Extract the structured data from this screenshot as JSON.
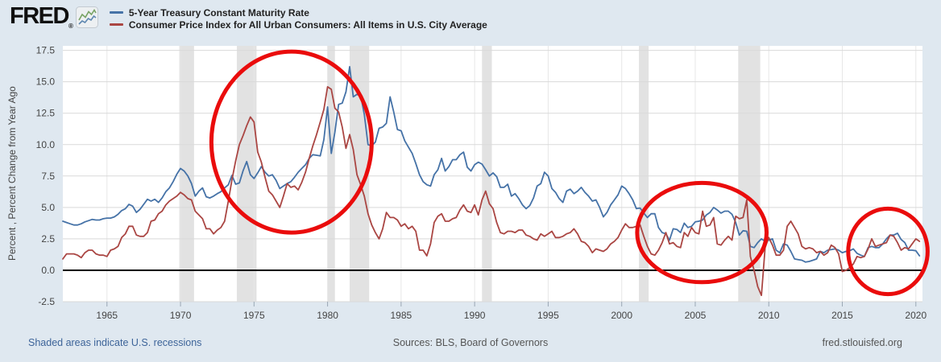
{
  "header": {
    "logo_text": "FRED",
    "logo_registered": "®",
    "logo_icon": "fred-sparkline-icon"
  },
  "footer": {
    "note": "Shaded areas indicate U.S. recessions",
    "sources": "Sources: BLS, Board of Governors",
    "site": "fred.stlouisfed.org"
  },
  "colors": {
    "background": "#dfe8f0",
    "plot_background": "#ffffff",
    "grid_horizontal": "#d9d9d9",
    "grid_vertical": "#e7e7e7",
    "tick_mark": "#9aa7b4",
    "zero_line": "#000000",
    "annotation_red": "#ea0c0c",
    "link_blue": "#3d6499",
    "footer_gray": "#555555"
  },
  "chart_data": {
    "type": "line",
    "title": "",
    "xlabel": "",
    "ylabel": "Percent , Percent Change from Year Ago",
    "x_range": [
      1962,
      2020.45
    ],
    "y_range": [
      -2.5,
      17.86
    ],
    "x_ticks": [
      1965,
      1970,
      1975,
      1980,
      1985,
      1990,
      1995,
      2000,
      2005,
      2010,
      2015,
      2020
    ],
    "x_tick_labels": [
      "1965",
      "1970",
      "1975",
      "1980",
      "1985",
      "1990",
      "1995",
      "2000",
      "2005",
      "2010",
      "2015",
      "2020"
    ],
    "y_ticks": [
      -2.5,
      0.0,
      2.5,
      5.0,
      7.5,
      10.0,
      12.5,
      15.0,
      17.5
    ],
    "y_tick_labels": [
      "-2.5",
      "0.0",
      "2.5",
      "5.0",
      "7.5",
      "10.0",
      "12.5",
      "15.0",
      "17.5"
    ],
    "grid": true,
    "zero_line": true,
    "legend_position": "top-left",
    "recession_color": "#e2e2e2",
    "recessions": [
      [
        1969.92,
        1970.92
      ],
      [
        1973.83,
        1975.17
      ],
      [
        1980.0,
        1980.5
      ],
      [
        1981.5,
        1982.83
      ],
      [
        1990.5,
        1991.17
      ],
      [
        2001.17,
        2001.83
      ],
      [
        2007.92,
        2009.42
      ]
    ],
    "series": [
      {
        "name": "5-Year Treasury Constant Maturity Rate",
        "color": "#4572a7",
        "x_start": 1962.0,
        "x_step": 0.25,
        "values": [
          3.9,
          3.8,
          3.7,
          3.6,
          3.6,
          3.7,
          3.85,
          3.95,
          4.05,
          4.0,
          4.0,
          4.1,
          4.15,
          4.15,
          4.25,
          4.45,
          4.75,
          4.9,
          5.25,
          5.1,
          4.6,
          4.85,
          5.25,
          5.65,
          5.5,
          5.65,
          5.4,
          5.75,
          6.25,
          6.55,
          7.05,
          7.65,
          8.1,
          7.9,
          7.5,
          6.9,
          5.9,
          6.3,
          6.55,
          5.85,
          5.75,
          5.9,
          6.1,
          6.25,
          6.55,
          6.8,
          7.55,
          6.85,
          6.95,
          7.9,
          8.65,
          7.6,
          7.3,
          7.75,
          8.25,
          7.8,
          7.5,
          7.6,
          7.15,
          6.5,
          6.7,
          6.9,
          7.05,
          7.4,
          7.8,
          8.1,
          8.4,
          8.9,
          9.2,
          9.15,
          9.1,
          10.4,
          13.0,
          9.3,
          11.0,
          13.2,
          13.3,
          14.2,
          16.2,
          13.8,
          14.0,
          13.9,
          12.4,
          10.0,
          9.9,
          10.2,
          11.3,
          11.4,
          11.7,
          13.8,
          12.6,
          11.2,
          11.1,
          10.3,
          9.8,
          9.3,
          8.5,
          7.6,
          7.05,
          6.8,
          6.7,
          7.6,
          8.0,
          8.9,
          7.9,
          8.25,
          8.8,
          8.8,
          9.2,
          9.4,
          8.2,
          7.9,
          8.4,
          8.6,
          8.45,
          8.0,
          7.5,
          7.75,
          7.45,
          6.6,
          6.6,
          6.85,
          5.9,
          6.1,
          5.7,
          5.2,
          4.9,
          5.15,
          5.75,
          6.7,
          6.9,
          7.8,
          7.5,
          6.5,
          6.2,
          5.7,
          5.4,
          6.3,
          6.45,
          6.1,
          6.3,
          6.6,
          6.2,
          5.9,
          5.5,
          5.6,
          5.0,
          4.25,
          4.6,
          5.2,
          5.6,
          6.0,
          6.7,
          6.5,
          6.1,
          5.6,
          4.9,
          4.95,
          4.55,
          4.2,
          4.5,
          4.5,
          3.4,
          3.0,
          2.9,
          2.4,
          3.3,
          3.25,
          3.0,
          3.75,
          3.4,
          3.5,
          3.85,
          3.9,
          4.0,
          4.4,
          4.6,
          5.0,
          4.8,
          4.55,
          4.7,
          4.7,
          4.45,
          3.8,
          2.8,
          3.15,
          3.1,
          1.9,
          1.8,
          2.2,
          2.5,
          2.3,
          2.4,
          2.5,
          1.6,
          1.4,
          2.1,
          2.0,
          1.5,
          0.9,
          0.85,
          0.8,
          0.65,
          0.7,
          0.8,
          0.9,
          1.5,
          1.4,
          1.6,
          1.65,
          1.7,
          1.6,
          1.4,
          1.5,
          1.55,
          1.7,
          1.35,
          1.2,
          1.1,
          1.8,
          1.9,
          1.8,
          1.8,
          2.1,
          2.5,
          2.8,
          2.8,
          2.95,
          2.45,
          2.2,
          1.6,
          1.6,
          1.55,
          1.15
        ]
      },
      {
        "name": "Consumer Price Index for All Urban Consumers: All Items in U.S. City Average",
        "color": "#aa4643",
        "x_start": 1962.0,
        "x_step": 0.25,
        "values": [
          0.9,
          1.3,
          1.3,
          1.3,
          1.2,
          1.0,
          1.4,
          1.6,
          1.6,
          1.3,
          1.2,
          1.2,
          1.1,
          1.6,
          1.7,
          1.9,
          2.6,
          2.9,
          3.5,
          3.5,
          2.8,
          2.7,
          2.7,
          3.0,
          3.9,
          4.0,
          4.5,
          4.7,
          5.2,
          5.5,
          5.7,
          5.9,
          6.2,
          6.0,
          5.7,
          5.6,
          4.7,
          4.4,
          4.1,
          3.3,
          3.3,
          2.9,
          3.2,
          3.4,
          3.9,
          5.5,
          7.2,
          8.7,
          10.0,
          10.7,
          11.5,
          12.2,
          11.8,
          9.4,
          8.6,
          7.4,
          6.3,
          6.0,
          5.5,
          5.0,
          5.9,
          6.9,
          6.6,
          6.7,
          6.4,
          7.0,
          7.8,
          8.9,
          9.9,
          10.8,
          11.8,
          12.8,
          14.6,
          14.4,
          12.9,
          12.6,
          11.4,
          9.7,
          10.8,
          9.6,
          7.6,
          6.8,
          5.9,
          4.5,
          3.6,
          3.0,
          2.5,
          3.3,
          4.6,
          4.2,
          4.2,
          4.0,
          3.5,
          3.7,
          3.3,
          3.5,
          3.1,
          1.6,
          1.6,
          1.15,
          2.1,
          3.8,
          4.3,
          4.5,
          3.9,
          3.9,
          4.1,
          4.2,
          4.8,
          5.2,
          4.7,
          4.6,
          5.2,
          4.4,
          5.6,
          6.3,
          5.3,
          4.9,
          3.8,
          3.0,
          2.9,
          3.1,
          3.1,
          3.0,
          3.2,
          3.2,
          2.8,
          2.7,
          2.5,
          2.4,
          2.9,
          2.7,
          2.9,
          3.1,
          2.6,
          2.6,
          2.7,
          2.9,
          3.0,
          3.3,
          2.9,
          2.3,
          2.2,
          1.9,
          1.4,
          1.7,
          1.6,
          1.5,
          1.7,
          2.1,
          2.3,
          2.6,
          3.2,
          3.7,
          3.4,
          3.4,
          3.5,
          3.6,
          2.7,
          1.9,
          1.3,
          1.2,
          1.6,
          2.2,
          3.0,
          2.1,
          2.2,
          1.9,
          1.8,
          3.0,
          2.7,
          3.4,
          3.0,
          2.9,
          4.7,
          3.5,
          3.6,
          4.2,
          2.1,
          2.0,
          2.4,
          2.7,
          2.4,
          4.3,
          4.1,
          4.2,
          5.6,
          1.1,
          0.0,
          -1.3,
          -2.0,
          1.8,
          2.6,
          2.0,
          1.2,
          1.2,
          1.6,
          3.5,
          3.9,
          3.4,
          2.9,
          1.9,
          1.7,
          1.8,
          1.7,
          1.4,
          1.5,
          1.2,
          1.4,
          2.0,
          1.8,
          1.3,
          -0.1,
          0.0,
          0.2,
          0.5,
          1.1,
          1.0,
          1.1,
          1.7,
          2.5,
          1.9,
          2.0,
          2.1,
          2.2,
          2.8,
          2.7,
          2.2,
          1.6,
          1.8,
          1.7,
          2.1,
          2.5,
          2.3
        ]
      }
    ],
    "annotations": {
      "shape": "ellipse",
      "color": "#ea0c0c",
      "stroke_width": 5,
      "items": [
        {
          "label": "1970s-inflation-circle",
          "cx_year": 1977.55,
          "cy_value": 10.2,
          "rx_years": 5.45,
          "ry_units": 7.2
        },
        {
          "label": "mid-2000s-circle",
          "cx_year": 2005.45,
          "cy_value": 3.0,
          "rx_years": 4.4,
          "ry_units": 3.95
        },
        {
          "label": "late-2010s-circle",
          "cx_year": 2018.1,
          "cy_value": 1.5,
          "rx_years": 2.7,
          "ry_units": 3.4
        }
      ]
    }
  }
}
